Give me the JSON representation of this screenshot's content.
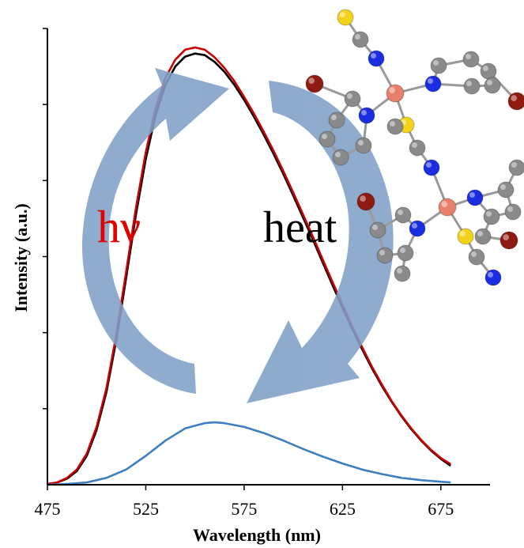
{
  "chart_data": {
    "type": "line",
    "xlabel": "Wavelength (nm)",
    "ylabel": "Intensity (a.u.)",
    "x_ticks": [
      475,
      525,
      575,
      625,
      675
    ],
    "xlim": [
      475,
      700
    ],
    "ylim": [
      0,
      6
    ],
    "y_tick_count": 6,
    "grid": false,
    "series": [
      {
        "color": "#000000",
        "x": [
          475,
          480,
          485,
          490,
          495,
          500,
          505,
          510,
          515,
          520,
          525,
          530,
          535,
          540,
          545,
          550,
          555,
          560,
          565,
          570,
          575,
          580,
          585,
          590,
          595,
          600,
          605,
          610,
          615,
          620,
          625,
          630,
          635,
          640,
          645,
          650,
          655,
          660,
          665,
          670,
          675,
          680
        ],
        "y": [
          0.01,
          0.03,
          0.08,
          0.18,
          0.38,
          0.72,
          1.22,
          1.9,
          2.72,
          3.55,
          4.28,
          4.86,
          5.26,
          5.5,
          5.63,
          5.67,
          5.65,
          5.56,
          5.43,
          5.26,
          5.06,
          4.84,
          4.6,
          4.35,
          4.08,
          3.8,
          3.51,
          3.22,
          2.92,
          2.62,
          2.33,
          2.05,
          1.78,
          1.53,
          1.3,
          1.09,
          0.9,
          0.73,
          0.58,
          0.45,
          0.34,
          0.25
        ]
      },
      {
        "color": "#cc0000",
        "x": [
          475,
          480,
          485,
          490,
          495,
          500,
          505,
          510,
          515,
          520,
          525,
          530,
          535,
          540,
          545,
          550,
          555,
          560,
          565,
          570,
          575,
          580,
          585,
          590,
          595,
          600,
          605,
          610,
          615,
          620,
          625,
          630,
          635,
          640,
          645,
          650,
          655,
          660,
          665,
          670,
          675,
          680
        ],
        "y": [
          0.01,
          0.03,
          0.09,
          0.2,
          0.41,
          0.76,
          1.27,
          1.97,
          2.8,
          3.64,
          4.37,
          4.95,
          5.35,
          5.59,
          5.72,
          5.75,
          5.72,
          5.62,
          5.48,
          5.31,
          5.1,
          4.88,
          4.64,
          4.39,
          4.12,
          3.84,
          3.55,
          3.26,
          2.96,
          2.66,
          2.37,
          2.08,
          1.81,
          1.55,
          1.32,
          1.1,
          0.91,
          0.74,
          0.59,
          0.46,
          0.35,
          0.27
        ]
      },
      {
        "color": "#3d7fc1",
        "x": [
          475,
          485,
          495,
          505,
          515,
          525,
          535,
          545,
          555,
          560,
          565,
          575,
          585,
          595,
          605,
          615,
          625,
          635,
          645,
          655,
          665,
          675,
          680
        ],
        "y": [
          0,
          0.01,
          0.03,
          0.09,
          0.2,
          0.38,
          0.58,
          0.74,
          0.81,
          0.82,
          0.81,
          0.76,
          0.68,
          0.58,
          0.47,
          0.37,
          0.28,
          0.2,
          0.14,
          0.09,
          0.06,
          0.04,
          0.03
        ]
      }
    ]
  },
  "annotations": {
    "light_label": "hν",
    "heat_label": "heat",
    "light_color": "#e00000",
    "heat_color": "#000000",
    "arrow_color": "#7f9fc6"
  },
  "molecule": {
    "atom_colors": {
      "carbon": "#8a8a8a",
      "nitrogen": "#1a2ee0",
      "sulfur": "#f2d21a",
      "bromine": "#8e1a12",
      "metal": "#e6806a"
    }
  }
}
